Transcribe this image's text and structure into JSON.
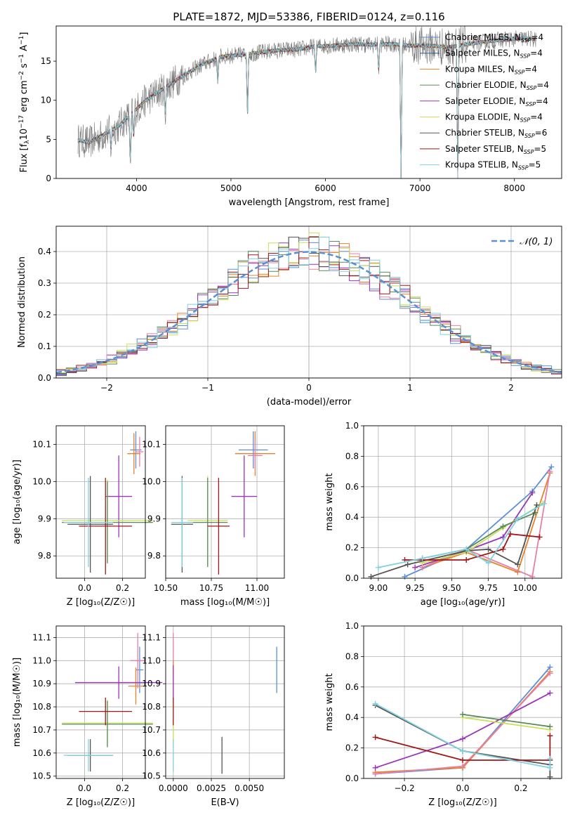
{
  "figure_title": "PLATE=1872, MJD=53386, FIBERID=0124, z=0.116",
  "colors": {
    "Chabrier MILES": "#5b8fd8",
    "Salpeter MILES": "#2f5f9a",
    "Kroupa MILES": "#e8822c",
    "Chabrier ELODIE": "#5a8a5a",
    "Salpeter ELODIE": "#9b35b8",
    "Kroupa ELODIE": "#c8e05a",
    "Chabrier STELIB": "#555555",
    "Salpeter STELIB": "#a01818",
    "Kroupa STELIB": "#7fd0e0",
    "pink": "#e67fa8",
    "gauss": "#5b8fd8"
  },
  "chart_data": [
    {
      "id": "spectrum",
      "type": "line",
      "xlabel": "wavelength [Angstrom, rest frame]",
      "ylabel": "Flux [f_λ10^-17 erg cm^-2 s^-1 A^-1]",
      "xlim": [
        3150,
        8500
      ],
      "ylim": [
        0,
        19.5
      ],
      "xticks": [
        4000,
        5000,
        6000,
        7000,
        8000
      ],
      "yticks": [
        0,
        5,
        10,
        15
      ],
      "grid": false,
      "legend_position": "right",
      "legend": [
        {
          "label": "Chabrier MILES, N_SSP=4",
          "color_key": "Chabrier MILES"
        },
        {
          "label": "Salpeter MILES, N_SSP=4",
          "color_key": "Salpeter MILES"
        },
        {
          "label": "Kroupa MILES, N_SSP=4",
          "color_key": "Kroupa MILES"
        },
        {
          "label": "Chabrier ELODIE, N_SSP=4",
          "color_key": "Chabrier ELODIE"
        },
        {
          "label": "Salpeter ELODIE, N_SSP=4",
          "color_key": "Salpeter ELODIE"
        },
        {
          "label": "Kroupa ELODIE, N_SSP=4",
          "color_key": "Kroupa ELODIE"
        },
        {
          "label": "Chabrier STELIB, N_SSP=6",
          "color_key": "Chabrier STELIB"
        },
        {
          "label": "Salpeter STELIB, N_SSP=5",
          "color_key": "Salpeter STELIB"
        },
        {
          "label": "Kroupa STELIB, N_SSP=5",
          "color_key": "Kroupa STELIB"
        }
      ],
      "continuum_points": [
        [
          3380,
          4.9
        ],
        [
          3500,
          4.6
        ],
        [
          3650,
          5.6
        ],
        [
          3800,
          6.6
        ],
        [
          3950,
          8.3
        ],
        [
          4100,
          10.0
        ],
        [
          4300,
          11.6
        ],
        [
          4500,
          13.2
        ],
        [
          4700,
          14.6
        ],
        [
          4900,
          15.6
        ],
        [
          5100,
          15.8
        ],
        [
          5300,
          16.1
        ],
        [
          5500,
          16.4
        ],
        [
          5700,
          16.5
        ],
        [
          5900,
          16.9
        ],
        [
          6100,
          17.0
        ],
        [
          6300,
          17.2
        ],
        [
          6500,
          17.1
        ],
        [
          6700,
          17.2
        ],
        [
          6900,
          17.0
        ],
        [
          7100,
          17.0
        ],
        [
          7300,
          16.8
        ],
        [
          7500,
          17.2
        ],
        [
          7700,
          17.5
        ],
        [
          7900,
          17.8
        ],
        [
          8100,
          17.9
        ],
        [
          8230,
          17.8
        ]
      ],
      "dips": [
        [
          3730,
          0.6
        ],
        [
          3935,
          0.2
        ],
        [
          3970,
          0.6
        ],
        [
          4305,
          0.7
        ],
        [
          4860,
          0.8
        ],
        [
          5175,
          0.5
        ],
        [
          5895,
          0.8
        ],
        [
          6563,
          0.8
        ],
        [
          6800,
          0.0
        ],
        [
          7400,
          0.0
        ]
      ]
    },
    {
      "id": "residual-histogram",
      "type": "line",
      "xlabel": "(data-model)/error",
      "ylabel": "Normed distribution",
      "xlim": [
        -2.5,
        2.5
      ],
      "ylim": [
        0,
        0.48
      ],
      "xticks": [
        -2,
        -1,
        0,
        1,
        2
      ],
      "xticklabels": [
        "−2",
        "−1",
        "0",
        "1",
        "2"
      ],
      "yticks": [
        0.0,
        0.1,
        0.2,
        0.3,
        0.4
      ],
      "yticklabels": [
        "0.0",
        "0.1",
        "0.2",
        "0.3",
        "0.4"
      ],
      "grid": true,
      "legend": [
        {
          "label": "𝒩(0, 1)",
          "color_key": "gauss"
        }
      ],
      "legend_position": "top-right",
      "bin_width": 0.1,
      "bin_start": -2.5
    },
    {
      "id": "age-vs-Z",
      "type": "scatter",
      "xlabel": "Z [log₁₀(Z/Z☉)]",
      "ylabel": "age  [log₁₀(age/yr)]",
      "xlim": [
        -0.15,
        0.32
      ],
      "ylim": [
        9.74,
        10.15
      ],
      "xticks": [
        0.0,
        0.2
      ],
      "xticklabels": [
        "0.0",
        "0.2"
      ],
      "yticks": [
        9.8,
        9.9,
        10.0,
        10.1
      ],
      "yticklabels": [
        "9.8",
        "9.9",
        "10.0",
        "10.1"
      ],
      "grid": true,
      "crosses": [
        {
          "c": "Chabrier MILES",
          "x": 0.27,
          "y": 10.085,
          "xe": 0.03,
          "ye": 0.05
        },
        {
          "c": "Kroupa MILES",
          "x": 0.26,
          "y": 10.075,
          "xe": 0.035,
          "ye": 0.055
        },
        {
          "c": "pink",
          "x": 0.29,
          "y": 10.08,
          "xe": 0.02,
          "ye": 0.04
        },
        {
          "c": "Salpeter ELODIE",
          "x": 0.18,
          "y": 9.96,
          "xe": 0.07,
          "ye": 0.11
        },
        {
          "c": "Kroupa ELODIE",
          "x": 0.12,
          "y": 9.895,
          "xe": 0.24,
          "ye": 0.11
        },
        {
          "c": "Chabrier ELODIE",
          "x": 0.12,
          "y": 9.89,
          "xe": 0.24,
          "ye": 0.11
        },
        {
          "c": "Chabrier STELIB",
          "x": 0.03,
          "y": 9.885,
          "xe": 0.12,
          "ye": 0.13
        },
        {
          "c": "Salpeter STELIB",
          "x": 0.11,
          "y": 9.88,
          "xe": 0.14,
          "ye": 0.13
        },
        {
          "c": "Kroupa STELIB",
          "x": 0.02,
          "y": 9.89,
          "xe": 0.13,
          "ye": 0.12
        }
      ]
    },
    {
      "id": "age-vs-mass",
      "type": "scatter",
      "xlabel": "mass [log₁₀(M/M☉)]",
      "ylabel": "",
      "xlim": [
        10.5,
        11.15
      ],
      "ylim": [
        9.74,
        10.15
      ],
      "xticks": [
        10.5,
        10.75,
        11.0
      ],
      "xticklabels": [
        "10.50",
        "10.75",
        "11.00"
      ],
      "yticks": [
        9.8,
        9.9,
        10.0,
        10.1
      ],
      "yticklabels": [
        "9.8",
        "9.9",
        "10.0",
        "10.1"
      ],
      "grid": true,
      "crosses": [
        {
          "c": "Chabrier MILES",
          "x": 10.98,
          "y": 10.085,
          "xe": 0.08,
          "ye": 0.05
        },
        {
          "c": "Kroupa MILES",
          "x": 10.99,
          "y": 10.075,
          "xe": 0.11,
          "ye": 0.06
        },
        {
          "c": "pink",
          "x": 10.99,
          "y": 10.07,
          "xe": 0.04,
          "ye": 0.04
        },
        {
          "c": "Salpeter ELODIE",
          "x": 10.93,
          "y": 9.96,
          "xe": 0.07,
          "ye": 0.11
        },
        {
          "c": "Kroupa ELODIE",
          "x": 10.73,
          "y": 9.895,
          "xe": 0.11,
          "ye": 0.12
        },
        {
          "c": "Chabrier ELODIE",
          "x": 10.73,
          "y": 9.89,
          "xe": 0.11,
          "ye": 0.12
        },
        {
          "c": "Chabrier STELIB",
          "x": 10.59,
          "y": 9.885,
          "xe": 0.06,
          "ye": 0.13
        },
        {
          "c": "Salpeter STELIB",
          "x": 10.79,
          "y": 9.88,
          "xe": 0.06,
          "ye": 0.13
        },
        {
          "c": "Kroupa STELIB",
          "x": 10.59,
          "y": 9.89,
          "xe": 0.06,
          "ye": 0.12
        }
      ]
    },
    {
      "id": "weight-vs-age",
      "type": "line",
      "xlabel": "age  [log₁₀(age/yr)]",
      "ylabel": "mass weight",
      "xlim": [
        8.9,
        10.25
      ],
      "ylim": [
        0,
        1.0
      ],
      "xticks": [
        9.0,
        9.25,
        9.5,
        9.75,
        10.0
      ],
      "xticklabels": [
        "9.00",
        "9.25",
        "9.50",
        "9.75",
        "10.00"
      ],
      "yticks": [
        0.0,
        0.2,
        0.4,
        0.6,
        0.8,
        1.0
      ],
      "yticklabels": [
        "0.0",
        "0.2",
        "0.4",
        "0.6",
        "0.8",
        "1.0"
      ],
      "grid": true,
      "series": [
        {
          "c": "Chabrier MILES",
          "x": [
            9.18,
            9.6,
            10.05,
            10.18
          ],
          "y": [
            0.01,
            0.19,
            0.57,
            0.73
          ]
        },
        {
          "c": "Kroupa MILES",
          "x": [
            9.3,
            9.6,
            9.95,
            10.17
          ],
          "y": [
            0.07,
            0.17,
            0.04,
            0.69
          ]
        },
        {
          "c": "pink",
          "x": [
            9.3,
            9.6,
            10.05,
            10.17
          ],
          "y": [
            0.07,
            0.19,
            0.01,
            0.7
          ]
        },
        {
          "c": "Salpeter ELODIE",
          "x": [
            9.25,
            9.6,
            9.85,
            10.05
          ],
          "y": [
            0.07,
            0.18,
            0.27,
            0.56
          ]
        },
        {
          "c": "Kroupa ELODIE",
          "x": [
            9.3,
            9.6,
            9.85,
            10.12
          ],
          "y": [
            0.1,
            0.17,
            0.33,
            0.49
          ]
        },
        {
          "c": "Chabrier ELODIE",
          "x": [
            9.3,
            9.6,
            9.85,
            10.07
          ],
          "y": [
            0.13,
            0.19,
            0.34,
            0.43
          ]
        },
        {
          "c": "Chabrier STELIB",
          "x": [
            8.95,
            9.2,
            9.6,
            9.75,
            9.95,
            10.08
          ],
          "y": [
            0.01,
            0.09,
            0.18,
            0.19,
            0.09,
            0.48
          ]
        },
        {
          "c": "Salpeter STELIB",
          "x": [
            9.18,
            9.6,
            9.85,
            9.9,
            10.1
          ],
          "y": [
            0.12,
            0.12,
            0.19,
            0.29,
            0.27
          ]
        },
        {
          "c": "Kroupa STELIB",
          "x": [
            9.0,
            9.3,
            9.6,
            9.75,
            9.95,
            10.13
          ],
          "y": [
            0.07,
            0.13,
            0.19,
            0.1,
            0.39,
            0.49
          ]
        }
      ]
    },
    {
      "id": "mass-vs-Z",
      "type": "scatter",
      "xlabel": "Z [log₁₀(Z/Z☉)]",
      "ylabel": "mass [log₁₀(M/M☉)]",
      "xlim": [
        -0.15,
        0.32
      ],
      "ylim": [
        10.49,
        11.15
      ],
      "xticks": [
        0.0,
        0.2
      ],
      "xticklabels": [
        "0.0",
        "0.2"
      ],
      "yticks": [
        10.5,
        10.6,
        10.7,
        10.8,
        10.9,
        11.0,
        11.1
      ],
      "yticklabels": [
        "10.5",
        "10.6",
        "10.7",
        "10.8",
        "10.9",
        "11.0",
        "11.1"
      ],
      "grid": true,
      "crosses": [
        {
          "c": "Chabrier MILES",
          "x": 0.29,
          "y": 10.96,
          "xe": 0.02,
          "ye": 0.1
        },
        {
          "c": "Kroupa MILES",
          "x": 0.27,
          "y": 10.89,
          "xe": 0.04,
          "ye": 0.08
        },
        {
          "c": "pink",
          "x": 0.28,
          "y": 11.0,
          "xe": 0.04,
          "ye": 0.12
        },
        {
          "c": "Salpeter ELODIE",
          "x": 0.18,
          "y": 10.905,
          "xe": 0.23,
          "ye": 0.07
        },
        {
          "c": "Kroupa ELODIE",
          "x": 0.12,
          "y": 10.73,
          "xe": 0.24,
          "ye": 0.1
        },
        {
          "c": "Chabrier ELODIE",
          "x": 0.12,
          "y": 10.725,
          "xe": 0.24,
          "ye": 0.1
        },
        {
          "c": "Chabrier STELIB",
          "x": 0.03,
          "y": 10.59,
          "xe": 0.12,
          "ye": 0.07
        },
        {
          "c": "Salpeter STELIB",
          "x": 0.11,
          "y": 10.78,
          "xe": 0.14,
          "ye": 0.06
        },
        {
          "c": "Kroupa STELIB",
          "x": 0.02,
          "y": 10.59,
          "xe": 0.13,
          "ye": 0.07
        }
      ]
    },
    {
      "id": "mass-vs-EBV",
      "type": "scatter",
      "xlabel": "E(B-V)",
      "ylabel": "",
      "xlim": [
        -0.0005,
        0.0073
      ],
      "ylim": [
        10.49,
        11.15
      ],
      "xticks": [
        0.0,
        0.0025,
        0.005
      ],
      "xticklabels": [
        "0.0000",
        "0.0025",
        "0.0050"
      ],
      "yticks": [
        10.5,
        10.6,
        10.7,
        10.8,
        10.9,
        11.0,
        11.1
      ],
      "yticklabels": [
        "10.5",
        "10.6",
        "10.7",
        "10.8",
        "10.9",
        "11.0",
        "11.1"
      ],
      "grid": true,
      "crosses": [
        {
          "c": "Chabrier MILES",
          "x": 0.0068,
          "y": 10.96,
          "xe": 0.0,
          "ye": 0.1
        },
        {
          "c": "Chabrier STELIB",
          "x": 0.0032,
          "y": 10.59,
          "xe": 0.0,
          "ye": 0.08
        },
        {
          "c": "pink",
          "x": 0.0,
          "y": 11.0,
          "xe": 0.0,
          "ye": 0.12
        },
        {
          "c": "Kroupa MILES",
          "x": 0.0,
          "y": 10.9,
          "xe": 0.0,
          "ye": 0.1
        },
        {
          "c": "Salpeter ELODIE",
          "x": 0.0,
          "y": 10.9,
          "xe": 0.0,
          "ye": 0.08
        },
        {
          "c": "Kroupa ELODIE",
          "x": 0.0,
          "y": 10.73,
          "xe": 0.0,
          "ye": 0.1
        },
        {
          "c": "Salpeter STELIB",
          "x": 0.0,
          "y": 10.78,
          "xe": 0.0,
          "ye": 0.06
        },
        {
          "c": "Kroupa STELIB",
          "x": 0.0,
          "y": 10.59,
          "xe": 0.0,
          "ye": 0.07
        }
      ]
    },
    {
      "id": "weight-vs-Z",
      "type": "line",
      "xlabel": "Z [log₁₀(Z/Z☉)]",
      "ylabel": "mass weight",
      "xlim": [
        -0.34,
        0.34
      ],
      "ylim": [
        0,
        1.0
      ],
      "xticks": [
        -0.2,
        0.0,
        0.2
      ],
      "xticklabels": [
        "−0.2",
        "0.0",
        "0.2"
      ],
      "yticks": [
        0.0,
        0.2,
        0.4,
        0.6,
        0.8,
        1.0
      ],
      "yticklabels": [
        "0.0",
        "0.2",
        "0.4",
        "0.6",
        "0.8",
        "1.0"
      ],
      "grid": true,
      "series": [
        {
          "c": "Chabrier MILES",
          "x": [
            -0.3,
            0.0,
            0.3
          ],
          "y": [
            0.03,
            0.07,
            0.73
          ]
        },
        {
          "c": "Kroupa MILES",
          "x": [
            -0.3,
            0.0,
            0.3
          ],
          "y": [
            0.04,
            0.07,
            0.7
          ]
        },
        {
          "c": "pink",
          "x": [
            -0.3,
            0.0,
            0.3
          ],
          "y": [
            0.03,
            0.08,
            0.69
          ]
        },
        {
          "c": "Salpeter ELODIE",
          "x": [
            -0.3,
            0.0,
            0.3
          ],
          "y": [
            0.07,
            0.26,
            0.56
          ]
        },
        {
          "c": "Kroupa ELODIE",
          "x": [
            0.0,
            0.3
          ],
          "y": [
            0.4,
            0.32
          ]
        },
        {
          "c": "Chabrier ELODIE",
          "x": [
            0.0,
            0.3
          ],
          "y": [
            0.42,
            0.34
          ]
        },
        {
          "c": "Chabrier STELIB",
          "x": [
            -0.3,
            0.0,
            0.3,
            0.3
          ],
          "y": [
            0.48,
            0.18,
            0.09,
            0.01
          ]
        },
        {
          "c": "Salpeter STELIB",
          "x": [
            -0.3,
            0.0,
            0.3,
            0.3
          ],
          "y": [
            0.27,
            0.12,
            0.12,
            0.28
          ]
        },
        {
          "c": "Kroupa STELIB",
          "x": [
            -0.3,
            0.0,
            0.3,
            0.3
          ],
          "y": [
            0.49,
            0.18,
            0.07,
            0.13
          ]
        }
      ]
    }
  ]
}
